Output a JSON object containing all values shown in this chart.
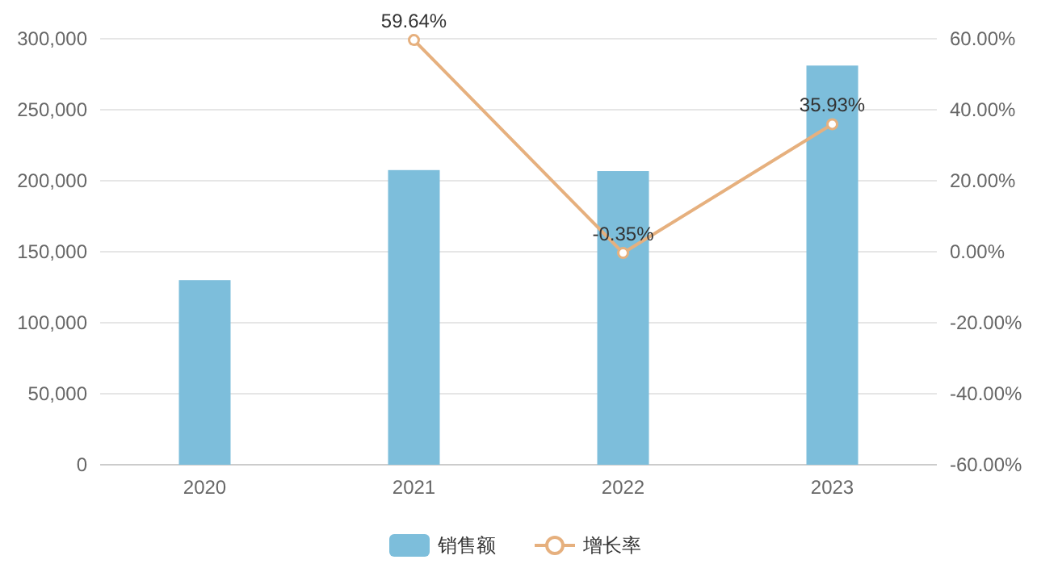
{
  "chart_data": {
    "type": "bar",
    "categories": [
      "2020",
      "2021",
      "2022",
      "2023"
    ],
    "series": [
      {
        "name": "销售额",
        "color": "#7dbedb",
        "values": [
          130000,
          207500,
          206800,
          281100
        ]
      },
      {
        "name": "增长率",
        "type": "line",
        "axis": "y2",
        "color": "#e6b07e",
        "marker": "circle",
        "values": [
          null,
          59.64,
          -0.35,
          35.93
        ],
        "value_labels": [
          null,
          "59.64%",
          "-0.35%",
          "35.93%"
        ]
      }
    ],
    "ylim": [
      0,
      300000
    ],
    "yticks": [
      0,
      {
        "value": 50000,
        "label": "50,000"
      },
      {
        "value": 100000,
        "label": "100,000"
      },
      {
        "value": 150000,
        "label": "150,000"
      },
      {
        "value": 200000,
        "label": "200,000"
      },
      {
        "value": 250000,
        "label": "250,000"
      },
      {
        "value": 300000,
        "label": "300,000"
      }
    ],
    "y2lim": [
      -60,
      60
    ],
    "y2ticks": [
      {
        "value": -60,
        "label": "-60.00%"
      },
      {
        "value": -40,
        "label": "-40.00%"
      },
      {
        "value": -20,
        "label": "-20.00%"
      },
      {
        "value": 0,
        "label": "0.00%"
      },
      {
        "value": 20,
        "label": "20.00%"
      },
      {
        "value": 40,
        "label": "40.00%"
      },
      {
        "value": 60,
        "label": "60.00%"
      }
    ],
    "grid": "y",
    "legend": "bottom"
  }
}
